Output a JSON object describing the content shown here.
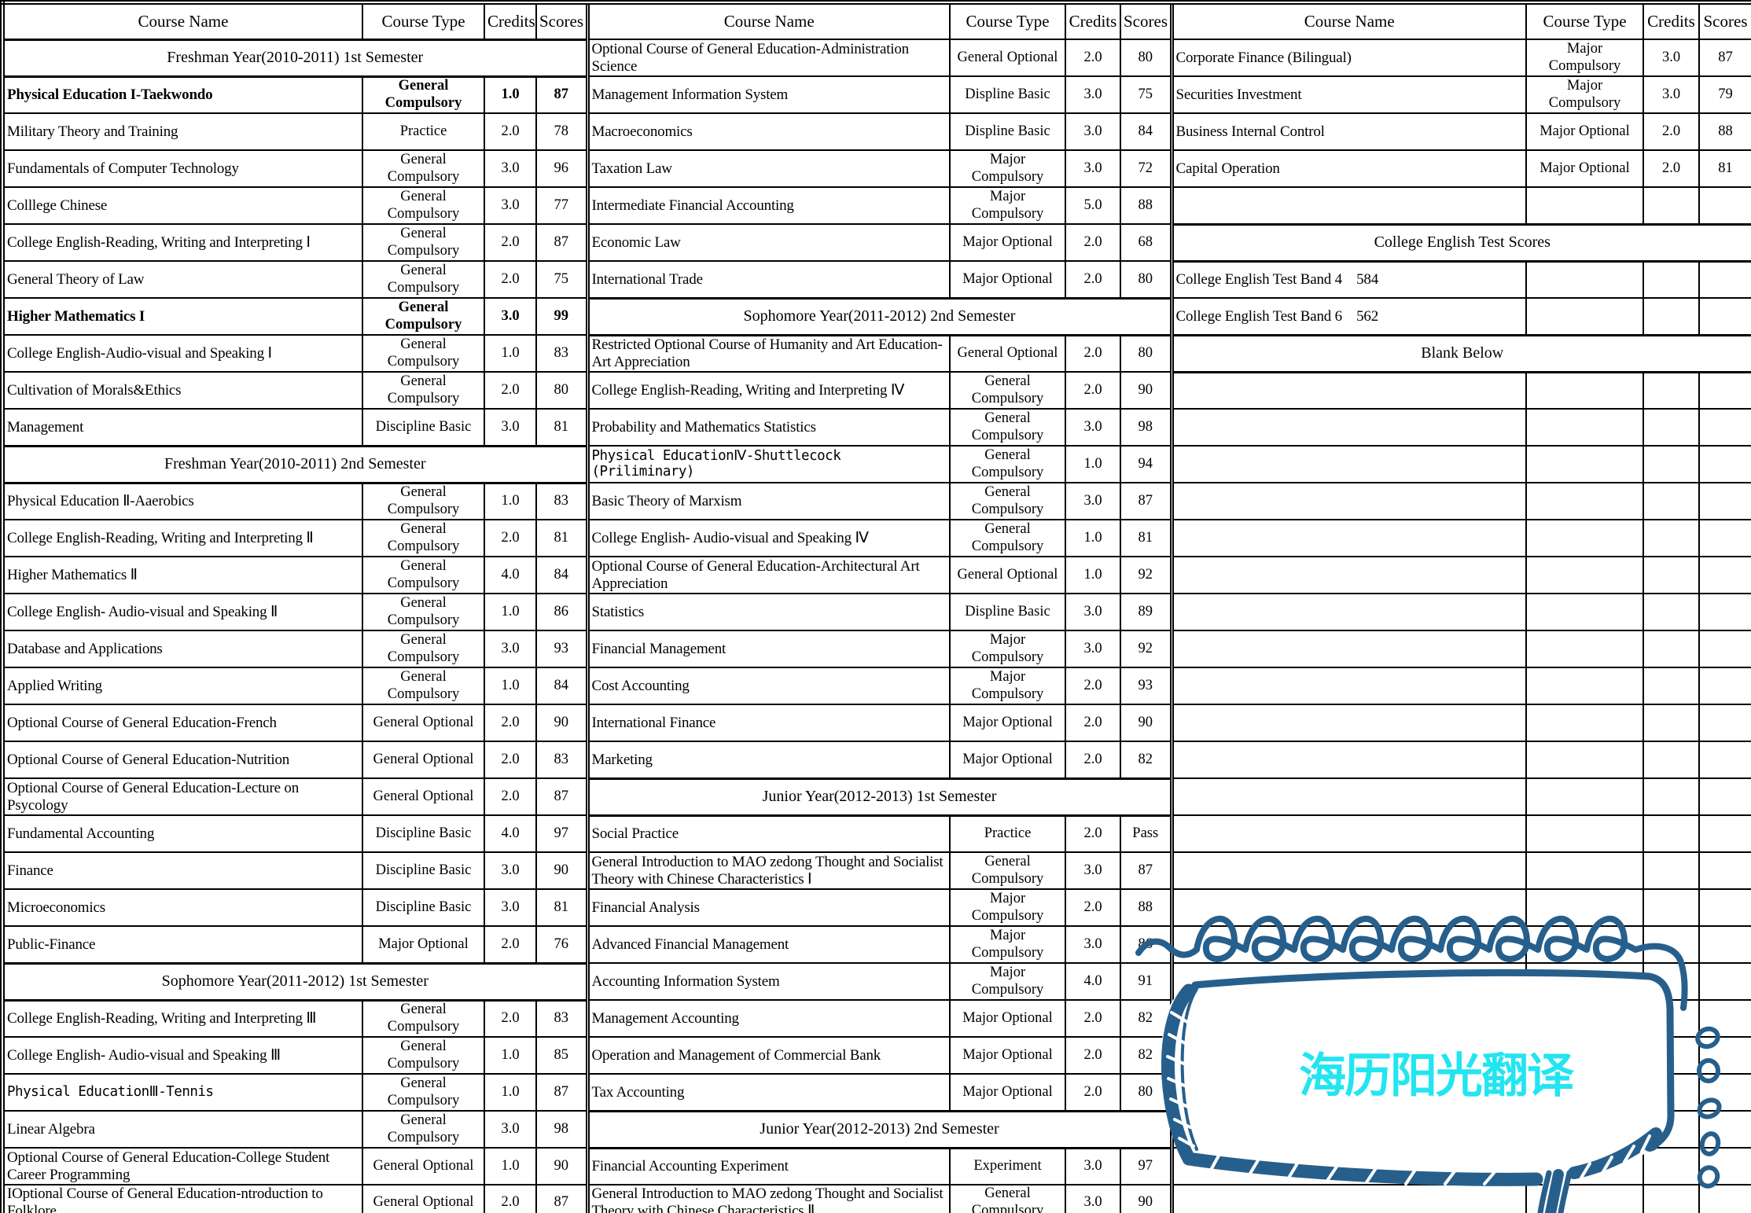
{
  "table": {
    "header_labels": [
      "Course Name",
      "Course Type",
      "Credits",
      "Scores"
    ],
    "rows": [
      {
        "groups": [
          {
            "kind": "section",
            "label": "Freshman Year(2010-2011) 1st Semester"
          },
          {
            "kind": "course",
            "name": "Optional Course of General Education-Administration Science",
            "type": "General Optional",
            "credits": "2.0",
            "score": "80"
          },
          {
            "kind": "course",
            "name": "Corporate Finance (Bilingual)",
            "type": "Major Compulsory",
            "credits": "3.0",
            "score": "87"
          }
        ]
      },
      {
        "groups": [
          {
            "kind": "course",
            "name": "Physical Education I-Taekwondo",
            "type": "General Compulsory",
            "credits": "1.0",
            "score": "87",
            "bold": true
          },
          {
            "kind": "course",
            "name": "Management Information System",
            "type": "Displine Basic",
            "credits": "3.0",
            "score": "75"
          },
          {
            "kind": "course",
            "name": "Securities Investment",
            "type": "Major Compulsory",
            "credits": "3.0",
            "score": "79"
          }
        ]
      },
      {
        "groups": [
          {
            "kind": "course",
            "name": "Military Theory and Training",
            "type": "Practice",
            "credits": "2.0",
            "score": "78"
          },
          {
            "kind": "course",
            "name": "Macroeconomics",
            "type": "Displine Basic",
            "credits": "3.0",
            "score": "84"
          },
          {
            "kind": "course",
            "name": "Business Internal Control",
            "type": "Major Optional",
            "credits": "2.0",
            "score": "88"
          }
        ]
      },
      {
        "groups": [
          {
            "kind": "course",
            "name": "Fundamentals of Computer Technology",
            "type": "General Compulsory",
            "credits": "3.0",
            "score": "96"
          },
          {
            "kind": "course",
            "name": "Taxation Law",
            "type": "Major Compulsory",
            "credits": "3.0",
            "score": "72"
          },
          {
            "kind": "course",
            "name": "Capital Operation",
            "type": "Major Optional",
            "credits": "2.0",
            "score": "81"
          }
        ]
      },
      {
        "groups": [
          {
            "kind": "course",
            "name": "Colllege Chinese",
            "type": "General Compulsory",
            "credits": "3.0",
            "score": "77"
          },
          {
            "kind": "course",
            "name": "Intermediate Financial Accounting",
            "type": "Major Compulsory",
            "credits": "5.0",
            "score": "88"
          },
          {
            "kind": "cells"
          }
        ]
      },
      {
        "groups": [
          {
            "kind": "course",
            "name": "College English-Reading, Writing and Interpreting Ⅰ",
            "type": "General Compulsory",
            "credits": "2.0",
            "score": "87"
          },
          {
            "kind": "course",
            "name": "Economic Law",
            "type": "Major Optional",
            "credits": "2.0",
            "score": "68"
          },
          {
            "kind": "section",
            "label": "College English Test Scores"
          }
        ]
      },
      {
        "groups": [
          {
            "kind": "course",
            "name": "General Theory of Law",
            "type": "General Compulsory",
            "credits": "2.0",
            "score": "75"
          },
          {
            "kind": "course",
            "name": "International Trade",
            "type": "Major Optional",
            "credits": "2.0",
            "score": "80"
          },
          {
            "kind": "cells",
            "name": "College English Test Band 4    584"
          }
        ]
      },
      {
        "groups": [
          {
            "kind": "course",
            "name": "Higher Mathematics I",
            "type": "General Compulsory",
            "credits": "3.0",
            "score": "99",
            "bold": true
          },
          {
            "kind": "section",
            "label": "Sophomore Year(2011-2012) 2nd Semester"
          },
          {
            "kind": "cells",
            "name": "College English Test Band 6    562"
          }
        ]
      },
      {
        "groups": [
          {
            "kind": "course",
            "name": "College English-Audio-visual and Speaking Ⅰ",
            "type": "General Compulsory",
            "credits": "1.0",
            "score": "83"
          },
          {
            "kind": "course",
            "name": "Restricted Optional Course of  Humanity and Art Education-Art Appreciation",
            "type": "General Optional",
            "credits": "2.0",
            "score": "80"
          },
          {
            "kind": "section",
            "label": "Blank Below"
          }
        ]
      },
      {
        "groups": [
          {
            "kind": "course",
            "name": "Cultivation of Morals&Ethics",
            "type": "General Compulsory",
            "credits": "2.0",
            "score": "80"
          },
          {
            "kind": "course",
            "name": "College English-Reading, Writing and Interpreting Ⅳ",
            "type": "General Compulsory",
            "credits": "2.0",
            "score": "90"
          },
          {
            "kind": "cells"
          }
        ]
      },
      {
        "groups": [
          {
            "kind": "course",
            "name": "Management",
            "type": "Discipline Basic",
            "credits": "3.0",
            "score": "81"
          },
          {
            "kind": "course",
            "name": "Probability and Mathematics Statistics",
            "type": "General Compulsory",
            "credits": "3.0",
            "score": "98"
          },
          {
            "kind": "cells"
          }
        ]
      },
      {
        "groups": [
          {
            "kind": "section",
            "label": "Freshman Year(2010-2011) 2nd Semester"
          },
          {
            "kind": "course",
            "name": "Physical EducationⅣ-Shuttlecock (Priliminary)",
            "type": "General Compulsory",
            "credits": "1.0",
            "score": "94",
            "mono": true
          },
          {
            "kind": "cells"
          }
        ]
      },
      {
        "groups": [
          {
            "kind": "course",
            "name": "Physical Education Ⅱ-Aaerobics",
            "type": "General Compulsory",
            "credits": "1.0",
            "score": "83"
          },
          {
            "kind": "course",
            "name": "Basic Theory of Marxism",
            "type": "General Compulsory",
            "credits": "3.0",
            "score": "87"
          },
          {
            "kind": "cells"
          }
        ]
      },
      {
        "groups": [
          {
            "kind": "course",
            "name": "College English-Reading, Writing and Interpreting Ⅱ",
            "type": "General Compulsory",
            "credits": "2.0",
            "score": "81"
          },
          {
            "kind": "course",
            "name": "College English- Audio-visual and Speaking Ⅳ",
            "type": "General Compulsory",
            "credits": "1.0",
            "score": "81"
          },
          {
            "kind": "cells"
          }
        ]
      },
      {
        "groups": [
          {
            "kind": "course",
            "name": "Higher Mathematics Ⅱ",
            "type": "General Compulsory",
            "credits": "4.0",
            "score": "84"
          },
          {
            "kind": "course",
            "name": "Optional Course of General Education-Architectural Art Appreciation",
            "type": "General Optional",
            "credits": "1.0",
            "score": "92"
          },
          {
            "kind": "cells"
          }
        ]
      },
      {
        "groups": [
          {
            "kind": "course",
            "name": "College English- Audio-visual and Speaking Ⅱ",
            "type": "General Compulsory",
            "credits": "1.0",
            "score": "86"
          },
          {
            "kind": "course",
            "name": "Statistics",
            "type": "Displine Basic",
            "credits": "3.0",
            "score": "89"
          },
          {
            "kind": "cells"
          }
        ]
      },
      {
        "groups": [
          {
            "kind": "course",
            "name": "Database and Applications",
            "type": "General Compulsory",
            "credits": "3.0",
            "score": "93"
          },
          {
            "kind": "course",
            "name": "Financial Management",
            "type": "Major Compulsory",
            "credits": "3.0",
            "score": "92"
          },
          {
            "kind": "cells"
          }
        ]
      },
      {
        "groups": [
          {
            "kind": "course",
            "name": "Applied Writing",
            "type": "General Compulsory",
            "credits": "1.0",
            "score": "84"
          },
          {
            "kind": "course",
            "name": "Cost Accounting",
            "type": "Major Compulsory",
            "credits": "2.0",
            "score": "93"
          },
          {
            "kind": "cells"
          }
        ]
      },
      {
        "groups": [
          {
            "kind": "course",
            "name": "Optional Course of General Education-French",
            "type": "General Optional",
            "credits": "2.0",
            "score": "90"
          },
          {
            "kind": "course",
            "name": "International Finance",
            "type": "Major Optional",
            "credits": "2.0",
            "score": "90"
          },
          {
            "kind": "cells"
          }
        ]
      },
      {
        "groups": [
          {
            "kind": "course",
            "name": "Optional Course of General Education-Nutrition",
            "type": "General Optional",
            "credits": "2.0",
            "score": "83"
          },
          {
            "kind": "course",
            "name": "Marketing",
            "type": "Major Optional",
            "credits": "2.0",
            "score": "82"
          },
          {
            "kind": "cells"
          }
        ]
      },
      {
        "groups": [
          {
            "kind": "course",
            "name": "Optional Course of General Education-Lecture on Psycology",
            "type": "General Optional",
            "credits": "2.0",
            "score": "87"
          },
          {
            "kind": "section",
            "label": "Junior Year(2012-2013) 1st Semester"
          },
          {
            "kind": "cells"
          }
        ]
      },
      {
        "groups": [
          {
            "kind": "course",
            "name": "Fundamental  Accounting",
            "type": "Discipline Basic",
            "credits": "4.0",
            "score": "97"
          },
          {
            "kind": "course",
            "name": "Social Practice",
            "type": "Practice",
            "credits": "2.0",
            "score": "Pass"
          },
          {
            "kind": "cells"
          }
        ]
      },
      {
        "groups": [
          {
            "kind": "course",
            "name": "Finance",
            "type": "Discipline Basic",
            "credits": "3.0",
            "score": "90"
          },
          {
            "kind": "course",
            "name": "General Introduction to MAO zedong Thought and Socialist Theory with Chinese Characteristics Ⅰ",
            "type": "General Compulsory",
            "credits": "3.0",
            "score": "87"
          },
          {
            "kind": "cells"
          }
        ]
      },
      {
        "groups": [
          {
            "kind": "course",
            "name": "Microeconomics",
            "type": "Discipline Basic",
            "credits": "3.0",
            "score": "81"
          },
          {
            "kind": "course",
            "name": "Financial Analysis",
            "type": "Major Compulsory",
            "credits": "2.0",
            "score": "88"
          },
          {
            "kind": "cells"
          }
        ]
      },
      {
        "groups": [
          {
            "kind": "course",
            "name": "Public-Finance",
            "type": "Major Optional",
            "credits": "2.0",
            "score": "76"
          },
          {
            "kind": "course",
            "name": "Advanced Financial Management",
            "type": "Major Compulsory",
            "credits": "3.0",
            "score": "86"
          },
          {
            "kind": "cells"
          }
        ]
      },
      {
        "groups": [
          {
            "kind": "section",
            "label": "Sophomore Year(2011-2012) 1st Semester"
          },
          {
            "kind": "course",
            "name": "Accounting Information System",
            "type": "Major Compulsory",
            "credits": "4.0",
            "score": "91"
          },
          {
            "kind": "cells"
          }
        ]
      },
      {
        "groups": [
          {
            "kind": "course",
            "name": "College English-Reading, Writing and Interpreting Ⅲ",
            "type": "General Compulsory",
            "credits": "2.0",
            "score": "83"
          },
          {
            "kind": "course",
            "name": "Management Accounting",
            "type": "Major Optional",
            "credits": "2.0",
            "score": "82"
          },
          {
            "kind": "cells"
          }
        ]
      },
      {
        "groups": [
          {
            "kind": "course",
            "name": "College English- Audio-visual and Speaking Ⅲ",
            "type": "General Compulsory",
            "credits": "1.0",
            "score": "85"
          },
          {
            "kind": "course",
            "name": "Operation and Management of Commercial Bank",
            "type": "Major Optional",
            "credits": "2.0",
            "score": "82"
          },
          {
            "kind": "cells"
          }
        ]
      },
      {
        "groups": [
          {
            "kind": "course",
            "name": "Physical EducationⅢ-Tennis",
            "type": "General Compulsory",
            "credits": "1.0",
            "score": "87",
            "mono": true
          },
          {
            "kind": "course",
            "name": "Tax Accounting",
            "type": "Major Optional",
            "credits": "2.0",
            "score": "80"
          },
          {
            "kind": "cells"
          }
        ]
      },
      {
        "groups": [
          {
            "kind": "course",
            "name": "Linear Algebra",
            "type": "General Compulsory",
            "credits": "3.0",
            "score": "98"
          },
          {
            "kind": "section",
            "label": "Junior Year(2012-2013) 2nd Semester"
          },
          {
            "kind": "cells"
          }
        ]
      },
      {
        "groups": [
          {
            "kind": "course",
            "name": "Optional Course of General Education-College Student Career Programming",
            "type": "General Optional",
            "credits": "1.0",
            "score": "90"
          },
          {
            "kind": "course",
            "name": "Financial Accounting Experiment",
            "type": "Experiment",
            "credits": "3.0",
            "score": "97"
          },
          {
            "kind": "cells"
          }
        ]
      },
      {
        "groups": [
          {
            "kind": "course",
            "name": "IOptional Course of General Education-ntroduction to Folklore",
            "type": "General Optional",
            "credits": "2.0",
            "score": "87"
          },
          {
            "kind": "course",
            "name": "General Introduction to MAO zedong Thought and Socialist Theory with Chinese Characteristics Ⅱ",
            "type": "General Compulsory",
            "credits": "3.0",
            "score": "90"
          },
          {
            "kind": "cells"
          }
        ]
      }
    ]
  },
  "watermark": {
    "text": "海历阳光翻译",
    "ink_color": "#275f8c",
    "text_color": "#23e5f0"
  }
}
